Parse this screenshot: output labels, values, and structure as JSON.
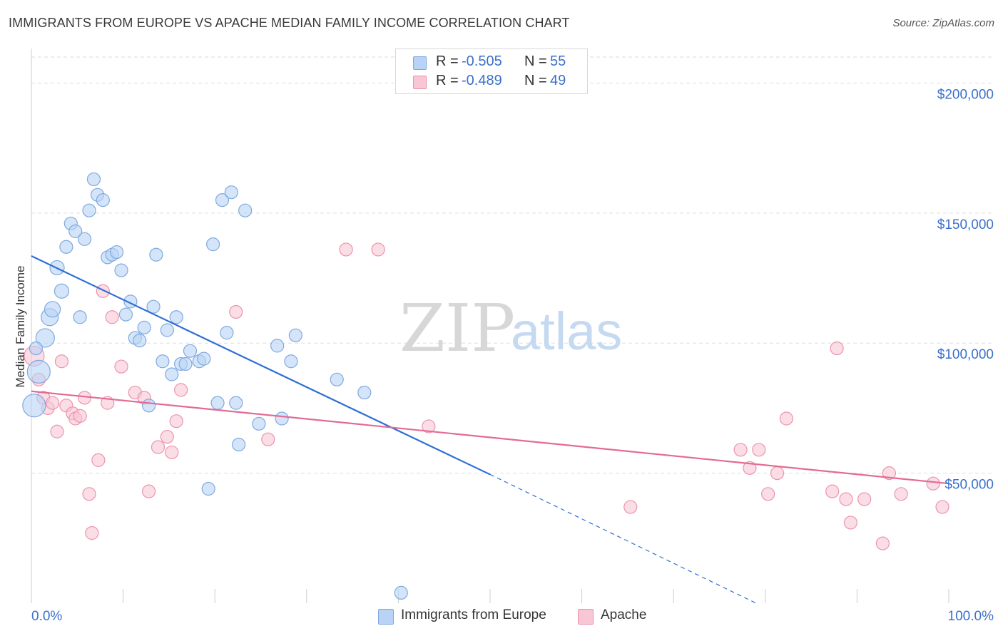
{
  "title": "IMMIGRANTS FROM EUROPE VS APACHE MEDIAN FAMILY INCOME CORRELATION CHART",
  "source": "Source: ZipAtlas.com",
  "watermark": {
    "zip": "ZIP",
    "atlas": "atlas"
  },
  "legend": {
    "rows": [
      {
        "r_label": "R =",
        "r_value": "-0.505",
        "n_label": "N =",
        "n_value": "55"
      },
      {
        "r_label": "R =",
        "r_value": "-0.489",
        "n_label": "N =",
        "n_value": "49"
      }
    ]
  },
  "bottom_legend": [
    "Immigrants from Europe",
    "Apache"
  ],
  "colors": {
    "europe_fill": "#b8d3f5",
    "europe_stroke": "#7fa9e0",
    "europe_line": "#2f6fd6",
    "apache_fill": "#f8c6d4",
    "apache_stroke": "#eb94ae",
    "apache_line": "#e36b95",
    "tick_label": "#3a70cc",
    "grid": "#dddddd"
  },
  "chart_data": {
    "type": "scatter",
    "xlabel": "",
    "ylabel": "Median Family Income",
    "xlim": [
      0,
      100
    ],
    "ylim": [
      0,
      210000
    ],
    "x_tick_labels": [
      "0.0%",
      "100.0%"
    ],
    "y_ticks": [
      50000,
      100000,
      150000,
      200000
    ],
    "y_tick_labels": [
      "$50,000",
      "$100,000",
      "$150,000",
      "$200,000"
    ],
    "grid": "horizontal dashed",
    "legend_position": "top-center",
    "series": [
      {
        "name": "Immigrants from Europe",
        "r": -0.505,
        "n": 55,
        "trend": {
          "x0": 0,
          "y0": 133500,
          "x1": 50,
          "y1": 49500,
          "dashed_to_x": 79,
          "dashed_to_y": 0
        },
        "points": [
          [
            0.3,
            76000,
            16
          ],
          [
            0.8,
            89000,
            16
          ],
          [
            1.5,
            102000,
            13
          ],
          [
            2,
            110000,
            12
          ],
          [
            2.3,
            113000,
            11
          ],
          [
            2.8,
            129000,
            10
          ],
          [
            3.3,
            120000,
            10
          ],
          [
            3.8,
            137000,
            9
          ],
          [
            4.3,
            146000,
            9
          ],
          [
            4.8,
            143000,
            9
          ],
          [
            5.3,
            110000,
            9
          ],
          [
            5.8,
            140000,
            9
          ],
          [
            6.3,
            151000,
            9
          ],
          [
            6.8,
            163000,
            9
          ],
          [
            7.2,
            157000,
            9
          ],
          [
            7.8,
            155000,
            9
          ],
          [
            8.3,
            133000,
            9
          ],
          [
            8.8,
            134000,
            9
          ],
          [
            9.3,
            135000,
            9
          ],
          [
            9.8,
            128000,
            9
          ],
          [
            10.3,
            111000,
            9
          ],
          [
            10.8,
            116000,
            9
          ],
          [
            11.3,
            102000,
            9
          ],
          [
            11.8,
            101000,
            9
          ],
          [
            12.3,
            106000,
            9
          ],
          [
            12.8,
            76000,
            9
          ],
          [
            13.3,
            114000,
            9
          ],
          [
            13.6,
            134000,
            9
          ],
          [
            14.3,
            93000,
            9
          ],
          [
            14.8,
            105000,
            9
          ],
          [
            15.3,
            88000,
            9
          ],
          [
            15.8,
            110000,
            9
          ],
          [
            16.3,
            92000,
            9
          ],
          [
            16.8,
            92000,
            9
          ],
          [
            17.3,
            97000,
            9
          ],
          [
            18.3,
            93000,
            9
          ],
          [
            18.8,
            94000,
            9
          ],
          [
            19.3,
            44000,
            9
          ],
          [
            19.8,
            138000,
            9
          ],
          [
            20.3,
            77000,
            9
          ],
          [
            20.8,
            155000,
            9
          ],
          [
            21.3,
            104000,
            9
          ],
          [
            21.8,
            158000,
            9
          ],
          [
            22.3,
            77000,
            9
          ],
          [
            22.6,
            61000,
            9
          ],
          [
            23.3,
            151000,
            9
          ],
          [
            24.8,
            69000,
            9
          ],
          [
            26.8,
            99000,
            9
          ],
          [
            27.3,
            71000,
            9
          ],
          [
            28.3,
            93000,
            9
          ],
          [
            28.8,
            103000,
            9
          ],
          [
            33.3,
            86000,
            9
          ],
          [
            36.3,
            81000,
            9
          ],
          [
            40.3,
            4000,
            9
          ],
          [
            0.5,
            98000,
            9
          ]
        ]
      },
      {
        "name": "Apache",
        "r": -0.489,
        "n": 49,
        "trend": {
          "x0": 0,
          "y0": 81500,
          "x1": 100,
          "y1": 46000
        },
        "points": [
          [
            0.3,
            95000,
            14
          ],
          [
            0.8,
            86000,
            9
          ],
          [
            1.3,
            79000,
            9
          ],
          [
            1.8,
            75000,
            9
          ],
          [
            2.3,
            77000,
            9
          ],
          [
            2.8,
            66000,
            9
          ],
          [
            3.3,
            93000,
            9
          ],
          [
            3.8,
            76000,
            9
          ],
          [
            4.5,
            73000,
            9
          ],
          [
            4.8,
            71000,
            9
          ],
          [
            5.3,
            72000,
            9
          ],
          [
            5.8,
            79000,
            9
          ],
          [
            6.3,
            42000,
            9
          ],
          [
            6.6,
            27000,
            9
          ],
          [
            7.3,
            55000,
            9
          ],
          [
            7.8,
            120000,
            9
          ],
          [
            8.3,
            77000,
            9
          ],
          [
            8.8,
            110000,
            9
          ],
          [
            9.8,
            91000,
            9
          ],
          [
            11.3,
            81000,
            9
          ],
          [
            12.3,
            79000,
            9
          ],
          [
            12.8,
            43000,
            9
          ],
          [
            13.8,
            60000,
            9
          ],
          [
            14.8,
            64000,
            9
          ],
          [
            15.3,
            58000,
            9
          ],
          [
            15.8,
            70000,
            9
          ],
          [
            16.3,
            82000,
            9
          ],
          [
            22.3,
            112000,
            9
          ],
          [
            25.8,
            63000,
            9
          ],
          [
            34.3,
            136000,
            9
          ],
          [
            37.8,
            136000,
            9
          ],
          [
            43.3,
            68000,
            9
          ],
          [
            65.3,
            37000,
            9
          ],
          [
            77.3,
            59000,
            9
          ],
          [
            78.3,
            52000,
            9
          ],
          [
            79.3,
            59000,
            9
          ],
          [
            80.3,
            42000,
            9
          ],
          [
            81.3,
            50000,
            9
          ],
          [
            82.3,
            71000,
            9
          ],
          [
            87.3,
            43000,
            9
          ],
          [
            87.8,
            98000,
            9
          ],
          [
            88.8,
            40000,
            9
          ],
          [
            89.3,
            31000,
            9
          ],
          [
            90.8,
            40000,
            9
          ],
          [
            92.8,
            23000,
            9
          ],
          [
            93.5,
            50000,
            9
          ],
          [
            94.8,
            42000,
            9
          ],
          [
            98.3,
            46000,
            9
          ],
          [
            99.3,
            37000,
            9
          ]
        ]
      }
    ]
  }
}
